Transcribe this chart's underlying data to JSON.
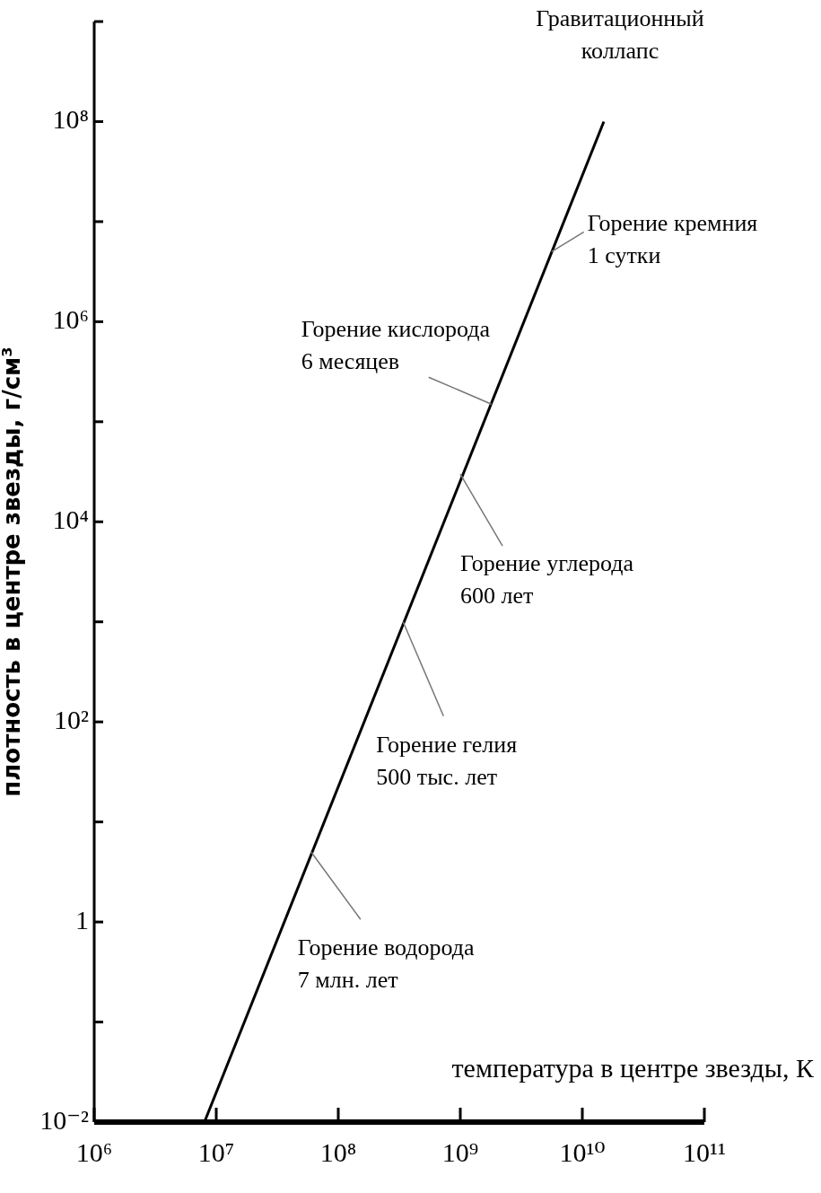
{
  "chart_data": {
    "type": "line",
    "xlabel": "температура в центре звезды, К",
    "ylabel": "плотность в центре звезды, г/см³",
    "log": "xy",
    "grid": false,
    "marker": "none",
    "line_style": "solid",
    "x": [
      8000000,
      15000000000
    ],
    "series": [
      {
        "color": "#000000",
        "values": [
          0.01,
          100000000
        ]
      }
    ],
    "xlim": [
      1000000,
      100000000000
    ],
    "ylim": [
      0.01,
      1000000000
    ],
    "xticks": [
      {
        "value": 1000000,
        "label": "10⁶"
      },
      {
        "value": 10000000,
        "label": "10⁷"
      },
      {
        "value": 100000000,
        "label": "10⁸"
      },
      {
        "value": 1000000000,
        "label": "10⁹"
      },
      {
        "value": 10000000000,
        "label": "10¹⁰"
      },
      {
        "value": 100000000000,
        "label": "10¹¹"
      }
    ],
    "yticks": [
      {
        "value": 0.01,
        "label": "10⁻²"
      },
      {
        "value": 0.1,
        "label": null
      },
      {
        "value": 1,
        "label": "1"
      },
      {
        "value": 10,
        "label": null
      },
      {
        "value": 100,
        "label": "10²"
      },
      {
        "value": 1000,
        "label": null
      },
      {
        "value": 10000,
        "label": "10⁴"
      },
      {
        "value": 100000,
        "label": null
      },
      {
        "value": 1000000,
        "label": "10⁶"
      },
      {
        "value": 10000000,
        "label": null
      },
      {
        "value": 100000000,
        "label": "10⁸"
      },
      {
        "value": 1000000000,
        "label": null
      }
    ],
    "annotations": [
      {
        "text": "Горение водорода\n7 млн. лет",
        "x": 60000000,
        "y": 5
      },
      {
        "text": "Горение гелия\n500 тыс. лет",
        "x": 340000000,
        "y": 1000
      },
      {
        "text": "Горение углерода\n600 лет",
        "x": 1000000000,
        "y": 30000
      },
      {
        "text": "Горение кислорода\n6 месяцев",
        "x": 1800000000,
        "y": 150000
      },
      {
        "text": "Горение кремния\n1 сутки",
        "x": 5600000000,
        "y": 5000000
      },
      {
        "text": "Гравитационный\nколлапс",
        "x": 15000000000,
        "y": 100000000
      }
    ]
  }
}
